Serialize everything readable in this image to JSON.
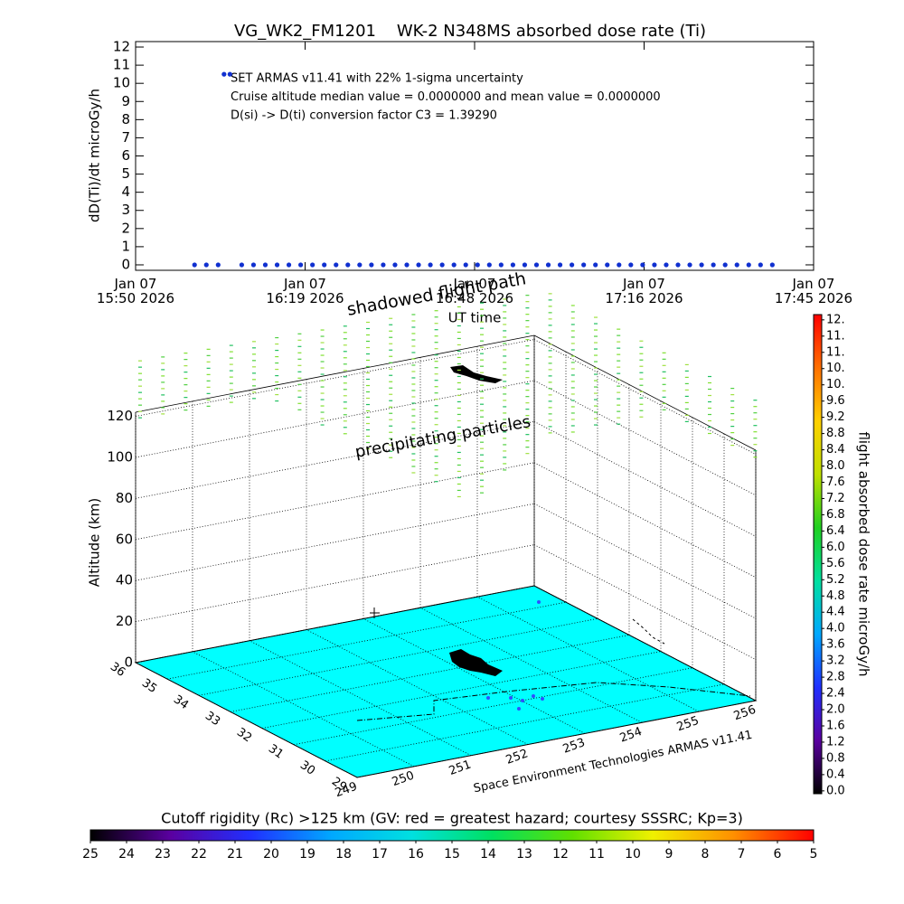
{
  "chart_data": [
    {
      "type": "scatter",
      "title": "VG_WK2_FM1201    WK-2 N348MS absorbed dose rate (Ti)",
      "xlabel": "UT time",
      "ylabel": "dD(Ti)/dt microGy/h",
      "annotations": [
        "SET ARMAS v11.41 with 22% 1-sigma uncertainty",
        "Cruise altitude median value = 0.0000000 and mean value = 0.0000000",
        "D(si) -> D(ti) conversion factor C3 = 1.39290"
      ],
      "x": [
        "2026-01-07 16:00",
        "2026-01-07 16:02",
        "2026-01-07 16:04",
        "2026-01-07 16:05",
        "2026-01-07 16:06",
        "2026-01-07 16:08",
        "2026-01-07 16:10",
        "2026-01-07 16:12",
        "2026-01-07 16:14",
        "2026-01-07 16:16",
        "2026-01-07 16:18",
        "2026-01-07 16:20",
        "2026-01-07 16:22",
        "2026-01-07 16:24",
        "2026-01-07 16:26",
        "2026-01-07 16:28",
        "2026-01-07 16:30",
        "2026-01-07 16:32",
        "2026-01-07 16:34",
        "2026-01-07 16:36",
        "2026-01-07 16:38",
        "2026-01-07 16:40",
        "2026-01-07 16:42",
        "2026-01-07 16:44",
        "2026-01-07 16:46",
        "2026-01-07 16:48",
        "2026-01-07 16:50",
        "2026-01-07 16:52",
        "2026-01-07 16:54",
        "2026-01-07 16:56",
        "2026-01-07 16:58",
        "2026-01-07 17:00",
        "2026-01-07 17:02",
        "2026-01-07 17:04",
        "2026-01-07 17:06",
        "2026-01-07 17:08",
        "2026-01-07 17:10",
        "2026-01-07 17:12",
        "2026-01-07 17:14",
        "2026-01-07 17:16",
        "2026-01-07 17:18",
        "2026-01-07 17:20",
        "2026-01-07 17:22",
        "2026-01-07 17:24",
        "2026-01-07 17:26",
        "2026-01-07 17:28",
        "2026-01-07 17:30",
        "2026-01-07 17:32",
        "2026-01-07 17:34",
        "2026-01-07 17:36",
        "2026-01-07 17:38"
      ],
      "values": [
        0,
        0,
        0,
        10.5,
        10.5,
        0,
        0,
        0,
        0,
        0,
        0,
        0,
        0,
        0,
        0,
        0,
        0,
        0,
        0,
        0,
        0,
        0,
        0,
        0,
        0,
        0,
        0,
        0,
        0,
        0,
        0,
        0,
        0,
        0,
        0,
        0,
        0,
        0,
        0,
        0,
        0,
        0,
        0,
        0,
        0,
        0,
        0,
        0,
        0,
        0,
        0
      ],
      "color": "#1030d0",
      "xlim": [
        "2026-01-07 15:50:00",
        "2026-01-07 17:45:00"
      ],
      "xticks": [
        {
          "value": "2026-01-07 15:50:00",
          "label": "Jan 07\n15:50 2026"
        },
        {
          "value": "2026-01-07 16:18:45",
          "label": "Jan 07\n16:19 2026"
        },
        {
          "value": "2026-01-07 16:47:30",
          "label": "Jan 07\n16:48 2026"
        },
        {
          "value": "2026-01-07 17:16:15",
          "label": "Jan 07\n17:16 2026"
        },
        {
          "value": "2026-01-07 17:45:00",
          "label": "Jan 07\n17:45 2026"
        }
      ],
      "ylim": [
        -0.3,
        12.3
      ],
      "yticks": [
        0,
        1,
        2,
        3,
        4,
        5,
        6,
        7,
        8,
        9,
        10,
        11,
        12
      ]
    },
    {
      "type": "surface3d",
      "zlabel": "Altitude (km)",
      "annotations": [
        "shadowed flight path",
        "precipitating particles"
      ],
      "credit": "Space Environment Technologies ARMAS v11.41",
      "xlim": [
        249,
        256
      ],
      "xticks": [
        249,
        250,
        251,
        252,
        253,
        254,
        255,
        256
      ],
      "ylim": [
        29,
        36
      ],
      "yticks": [
        29,
        30,
        31,
        32,
        33,
        34,
        35,
        36
      ],
      "zlim": [
        0,
        122
      ],
      "zticks": [
        0,
        20,
        40,
        60,
        80,
        100,
        120
      ],
      "floor_color": "#00ffff"
    },
    {
      "type": "colorbar",
      "orientation": "vertical",
      "label": "flight absorbed dose rate microGy/h",
      "ylim": [
        -0.07,
        11.73
      ],
      "yticks": [
        {
          "value": 0,
          "label": "0.0"
        },
        0.4,
        0.8,
        1.2,
        1.6,
        {
          "value": 2,
          "label": "2.0"
        },
        2.4,
        2.8,
        3.2,
        3.6,
        {
          "value": 4,
          "label": "4.0"
        },
        4.4,
        4.8,
        5.2,
        5.6,
        {
          "value": 6,
          "label": "6.0"
        },
        6.4,
        6.8,
        7.2,
        7.6,
        {
          "value": 8,
          "label": "8.0"
        },
        8.4,
        8.8,
        9.2,
        9.6,
        {
          "value": 10,
          "label": "10."
        },
        {
          "value": 10.4,
          "label": "10."
        },
        {
          "value": 10.8,
          "label": "11."
        },
        {
          "value": 11.2,
          "label": "11."
        },
        {
          "value": 11.6,
          "label": "12."
        }
      ],
      "colormap": [
        "#000000",
        "#5a00a0",
        "#2030ff",
        "#00a8ff",
        "#00e0a0",
        "#20d020",
        "#c0e000",
        "#ffd000",
        "#ff7000",
        "#ff0000"
      ]
    },
    {
      "type": "colorbar",
      "orientation": "horizontal",
      "title": "Cutoff rigidity (Rc) >125 km (GV: red = greatest hazard; courtesy SSSRC; Kp=3)",
      "xlim": [
        25,
        5
      ],
      "xticks": [
        25,
        24,
        23,
        22,
        21,
        20,
        19,
        18,
        17,
        16,
        15,
        14,
        13,
        12,
        11,
        10,
        9,
        8,
        7,
        6,
        5
      ],
      "colormap": [
        "#000000",
        "#5a00a0",
        "#2030ff",
        "#00a8ff",
        "#00e0e0",
        "#00e060",
        "#60e000",
        "#f0f000",
        "#ff9000",
        "#ff0000"
      ]
    }
  ]
}
